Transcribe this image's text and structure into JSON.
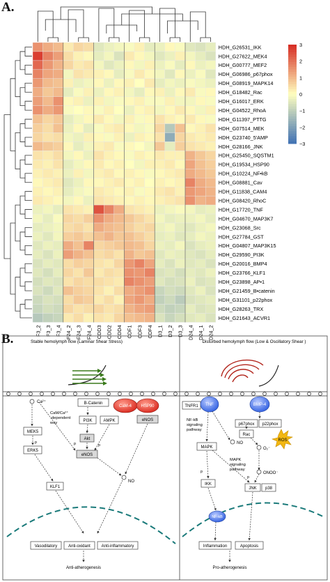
{
  "panel_a": {
    "label": "A.",
    "rows": [
      "HDH_G26531_IKK",
      "HDH_G27622_MEK4",
      "HDH_G00777_MEF2",
      "HDH_G06986_p67phox",
      "HDH_G08919_MAPK14",
      "HDH_G18482_Rac",
      "HDH_G16017_ERK",
      "HDH_G04522_RhoA",
      "HDH_G11397_PTTG",
      "HDH_G07514_MEK",
      "HDH_G23740_5′AMP",
      "HDH_G28166_JNK",
      "HDH_G25450_SQSTM1",
      "HDH_G19534_HSP90",
      "HDH_G10224_NF•kB",
      "HDH_G08881_Cav",
      "HDH_G11838_CAM4",
      "HDH_G08420_RhoC",
      "HDH_G17720_TNF",
      "HDH_G04670_MAP3K7",
      "HDH_G23068_Src",
      "HDH_G27784_GST",
      "HDH_G04807_MAP3K15",
      "HDH_G29590_PI3K",
      "HDH_G20016_BMP4",
      "HDH_G23766_KLF1",
      "HDH_G23898_AP•1",
      "HDH_G21459_B•catenin",
      "HDH_G31101_p22phox",
      "HDH_G28263_TRX",
      "HDH_G21643_ACVR1"
    ],
    "columns": [
      "F3_2",
      "F3_3",
      "F3_4",
      "F24_2",
      "F24_3",
      "F24_4",
      "CDD3",
      "CDD2",
      "CDD4",
      "CDF1",
      "CDF3",
      "CDF4",
      "D3_1",
      "D3_2",
      "D3_3",
      "D24_4",
      "D24_1",
      "D24_2"
    ],
    "values": [
      [
        1.6,
        1.2,
        1.0,
        0.3,
        0.6,
        0.5,
        -0.5,
        -0.3,
        -0.2,
        -0.1,
        0.2,
        -0.4,
        -0.3,
        0.1,
        -0.1,
        -0.5,
        -0.6,
        -0.4
      ],
      [
        2.8,
        1.8,
        1.4,
        0.5,
        0.2,
        0.1,
        -0.4,
        -0.2,
        -0.6,
        0.3,
        0.1,
        -0.2,
        -0.5,
        -0.3,
        0.2,
        -0.2,
        -0.4,
        -0.6
      ],
      [
        2.2,
        1.5,
        1.1,
        0.6,
        0.3,
        0.4,
        -0.2,
        -0.5,
        -0.3,
        0.1,
        -0.2,
        0.2,
        -0.3,
        -0.1,
        -0.4,
        0.1,
        -0.3,
        -0.2
      ],
      [
        1.8,
        1.3,
        1.2,
        -0.2,
        0.4,
        0.3,
        0.2,
        0.1,
        -0.4,
        -0.1,
        0.3,
        0.1,
        -0.2,
        -0.5,
        0.1,
        -0.3,
        -0.1,
        -0.5
      ],
      [
        1.5,
        1.0,
        0.9,
        0.2,
        -0.3,
        -0.2,
        0.1,
        -0.3,
        0.1,
        0.2,
        0.0,
        0.3,
        -0.4,
        -0.2,
        -0.3,
        -0.1,
        -0.2,
        -0.3
      ],
      [
        1.2,
        0.8,
        1.0,
        -0.4,
        -0.1,
        0.2,
        -0.3,
        0.1,
        0.2,
        -0.2,
        -0.4,
        0.1,
        0.2,
        -0.3,
        0.1,
        0.3,
        -0.1,
        0.1
      ],
      [
        1.4,
        1.0,
        1.6,
        0.1,
        0.2,
        -0.3,
        0.2,
        -0.2,
        -0.1,
        0.1,
        0.2,
        -0.1,
        -0.1,
        0.2,
        -0.2,
        -0.2,
        0.1,
        -0.1
      ],
      [
        1.6,
        1.2,
        1.5,
        -0.1,
        0.0,
        0.1,
        -0.1,
        0.2,
        0.0,
        -0.3,
        0.1,
        0.2,
        -0.2,
        0.1,
        0.3,
        0.1,
        -0.2,
        0.2
      ],
      [
        0.9,
        0.6,
        0.8,
        -0.4,
        -0.2,
        0.1,
        0.3,
        0.1,
        -0.2,
        0.2,
        -0.1,
        0.1,
        0.4,
        0.2,
        0.1,
        0.3,
        0.1,
        -0.1
      ],
      [
        0.7,
        0.5,
        0.9,
        -0.3,
        0.1,
        -0.4,
        -0.1,
        0.2,
        0.3,
        0.1,
        -0.2,
        -0.1,
        0.6,
        -1.2,
        0.9,
        0.1,
        0.2,
        0.4
      ],
      [
        0.6,
        0.4,
        0.5,
        -0.2,
        -0.3,
        0.2,
        0.1,
        -0.1,
        0.2,
        -0.3,
        0.2,
        0.1,
        0.4,
        -1.8,
        0.6,
        0.3,
        0.2,
        0.3
      ],
      [
        1.0,
        0.8,
        0.7,
        0.1,
        -0.4,
        -0.2,
        0.2,
        0.3,
        -0.1,
        0.1,
        0.0,
        -0.2,
        0.8,
        -0.4,
        0.7,
        0.4,
        0.3,
        0.2
      ],
      [
        0.4,
        0.3,
        0.5,
        -0.2,
        0.1,
        -0.3,
        0.4,
        0.2,
        0.1,
        -0.1,
        0.2,
        0.1,
        0.3,
        0.2,
        0.2,
        1.1,
        0.8,
        0.6
      ],
      [
        0.3,
        0.2,
        0.4,
        -0.4,
        -0.2,
        0.1,
        0.3,
        0.1,
        0.2,
        0.0,
        -0.2,
        0.2,
        0.2,
        0.3,
        0.1,
        1.3,
        0.9,
        0.7
      ],
      [
        0.2,
        0.3,
        0.2,
        -0.3,
        0.2,
        -0.2,
        0.2,
        0.3,
        0.1,
        0.2,
        0.1,
        -0.1,
        0.1,
        0.2,
        0.3,
        1.2,
        1.0,
        0.8
      ],
      [
        0.1,
        0.2,
        0.3,
        -0.5,
        -0.3,
        0.1,
        0.1,
        0.2,
        0.3,
        0.1,
        0.2,
        0.0,
        0.2,
        0.1,
        0.2,
        1.8,
        1.2,
        1.0
      ],
      [
        0.2,
        0.1,
        0.2,
        -0.4,
        -0.2,
        -0.1,
        0.3,
        0.2,
        0.1,
        0.2,
        -0.1,
        0.1,
        0.3,
        0.4,
        0.2,
        1.5,
        1.3,
        1.1
      ],
      [
        0.3,
        0.2,
        0.1,
        -0.2,
        0.1,
        -0.3,
        0.4,
        0.3,
        0.2,
        0.1,
        0.2,
        0.1,
        0.2,
        0.3,
        0.4,
        1.6,
        1.1,
        1.2
      ],
      [
        -0.3,
        -0.2,
        -0.4,
        0.4,
        0.3,
        0.2,
        2.5,
        1.8,
        1.2,
        0.4,
        0.3,
        0.2,
        -0.3,
        -0.2,
        -0.1,
        -0.2,
        -0.4,
        -0.3
      ],
      [
        -0.2,
        -0.4,
        -0.1,
        0.6,
        0.5,
        0.7,
        1.6,
        1.2,
        1.0,
        0.8,
        0.6,
        0.4,
        -0.2,
        -0.4,
        -0.3,
        -0.3,
        -0.2,
        -0.4
      ],
      [
        -0.4,
        -0.3,
        -0.2,
        0.5,
        0.6,
        0.4,
        1.2,
        1.0,
        0.9,
        0.7,
        0.5,
        0.6,
        -0.3,
        -0.2,
        -0.4,
        -0.5,
        -0.3,
        -0.2
      ],
      [
        -0.3,
        -0.5,
        -0.2,
        0.7,
        0.8,
        0.6,
        0.9,
        1.1,
        0.8,
        0.9,
        0.7,
        0.5,
        -0.4,
        -0.3,
        -0.5,
        -0.4,
        -0.2,
        -0.3
      ],
      [
        -0.5,
        -0.3,
        -0.4,
        1.2,
        0.9,
        1.8,
        0.6,
        0.7,
        0.8,
        1.0,
        0.9,
        0.6,
        -0.3,
        -0.4,
        -0.2,
        -0.6,
        -0.4,
        -0.3
      ],
      [
        -0.4,
        -0.6,
        -0.3,
        1.4,
        1.1,
        0.9,
        0.5,
        0.6,
        0.4,
        1.1,
        0.8,
        0.9,
        -0.5,
        -0.3,
        -0.4,
        -0.5,
        -0.6,
        -0.4
      ],
      [
        -0.6,
        -0.4,
        -0.5,
        0.5,
        0.7,
        0.6,
        0.4,
        0.3,
        0.6,
        1.5,
        1.8,
        1.3,
        -0.4,
        -0.6,
        -0.3,
        -0.5,
        -0.4,
        -0.6
      ],
      [
        -0.5,
        -0.7,
        -0.4,
        0.6,
        0.4,
        0.8,
        0.3,
        0.5,
        0.4,
        1.6,
        1.5,
        1.8,
        -0.6,
        -0.5,
        -0.7,
        -0.4,
        -0.5,
        -0.3
      ],
      [
        -0.7,
        -0.5,
        -0.6,
        0.4,
        0.6,
        0.5,
        0.5,
        0.4,
        0.3,
        1.8,
        1.6,
        1.4,
        -0.5,
        -0.7,
        -0.6,
        -0.3,
        -0.6,
        -0.5
      ],
      [
        -0.6,
        -0.8,
        -0.5,
        0.9,
        0.7,
        0.6,
        0.4,
        0.2,
        0.5,
        1.2,
        1.4,
        1.6,
        -0.9,
        -0.7,
        -0.8,
        -0.5,
        -0.3,
        -0.6
      ],
      [
        -0.8,
        -0.6,
        -0.7,
        0.5,
        0.8,
        0.7,
        0.3,
        0.5,
        0.2,
        1.3,
        1.5,
        1.2,
        -1.0,
        -0.8,
        -1.1,
        -0.6,
        -0.5,
        -0.4
      ],
      [
        -0.9,
        -0.7,
        -0.8,
        0.6,
        0.4,
        0.5,
        0.6,
        0.4,
        0.5,
        1.1,
        1.3,
        1.4,
        -0.8,
        -1.0,
        -0.9,
        -0.4,
        -0.6,
        -0.5
      ],
      [
        -1.2,
        -1.0,
        -0.9,
        0.3,
        0.5,
        0.2,
        0.4,
        0.3,
        0.6,
        0.9,
        1.0,
        1.1,
        -0.6,
        -0.9,
        -0.7,
        -0.5,
        -0.4,
        -0.6
      ]
    ],
    "legend_ticks": [
      3,
      2,
      1,
      0,
      -1,
      -2,
      -3
    ],
    "legend_ticks_text": [
      "3",
      "2",
      "1",
      "0",
      "−1",
      "−2",
      "−3"
    ],
    "colors": {
      "high": "#d73027",
      "mid": "#ffffbf",
      "low": "#4575b4"
    }
  },
  "panel_b": {
    "label": "B.",
    "left_title": "Stable hemolymph flow (Laminar Shear Stress)",
    "right_title": "Disturbed hemolymph flow (Low & Oscillatory Shear )",
    "left": {
      "ca": "Ca²⁺",
      "ca_note_1": "CaM/Ca²⁺",
      "ca_note_2": "-dependent",
      "ca_note_3": "way",
      "b_catenin": "B-Catenin",
      "cam4": "CaM-4",
      "hsp90": "HSP90",
      "pi3k": "PI3K",
      "ampk": "AMPK",
      "akt": "Akt",
      "enos_mid": "eNOS",
      "enos_right": "eNOS",
      "mek5": "MEK5",
      "erk5": "ERK5",
      "klf1": "KLF1",
      "p1": "p",
      "p2": "p",
      "p3": "p",
      "no": "NO",
      "vasodilatory": "Vasodilatory",
      "anti_oxidant": "Anti-oxidant",
      "anti_inflammatory": "Anti-inflammatory",
      "outcome": "Anti-atherogenesis"
    },
    "right": {
      "tnfr1": "TNFR1",
      "tnf": "TNF",
      "bmp4": "BMP-4",
      "nfkb_note_1": "NF-kB",
      "nfkb_note_2": "signaling",
      "nfkb_note_3": "pathway",
      "p67phox": "p67phox",
      "p22phox": "p22phox",
      "rac": "Rac",
      "ros": "ROS",
      "no": "NO",
      "o2": "O₂⁻",
      "mapk": "MAPK",
      "mapk_note_1": "MAPK",
      "mapk_note_2": "signaling",
      "mapk_note_3": "pathway",
      "onoo": "ONOO⁻",
      "ikk": "IKK",
      "jnk": "JNK",
      "p38": "p38",
      "nfkb": "NF-kB",
      "p1": "p",
      "p2": "p",
      "inflammation": "Inflammation",
      "apoptosis": "Apoptosis",
      "outcome": "Pro-atherogenesis"
    }
  }
}
